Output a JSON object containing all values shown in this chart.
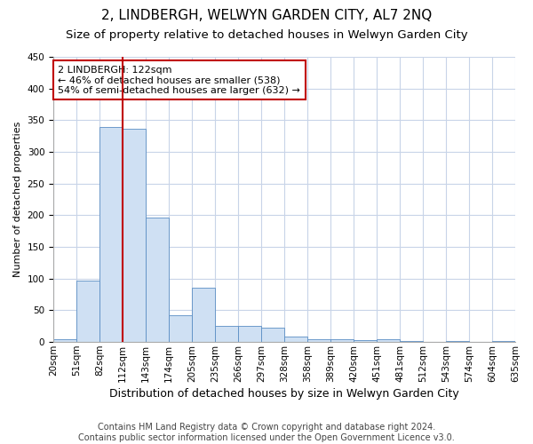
{
  "title": "2, LINDBERGH, WELWYN GARDEN CITY, AL7 2NQ",
  "subtitle": "Size of property relative to detached houses in Welwyn Garden City",
  "xlabel": "Distribution of detached houses by size in Welwyn Garden City",
  "ylabel": "Number of detached properties",
  "footer_line1": "Contains HM Land Registry data © Crown copyright and database right 2024.",
  "footer_line2": "Contains public sector information licensed under the Open Government Licence v3.0.",
  "annotation_line1": "2 LINDBERGH: 122sqm",
  "annotation_line2": "← 46% of detached houses are smaller (538)",
  "annotation_line3": "54% of semi-detached houses are larger (632) →",
  "bar_values": [
    4,
    97,
    340,
    336,
    197,
    42,
    85,
    26,
    25,
    22,
    9,
    5,
    4,
    3,
    5,
    1,
    0,
    1,
    0,
    2
  ],
  "bin_labels": [
    "20sqm",
    "51sqm",
    "82sqm",
    "112sqm",
    "143sqm",
    "174sqm",
    "205sqm",
    "235sqm",
    "266sqm",
    "297sqm",
    "328sqm",
    "358sqm",
    "389sqm",
    "420sqm",
    "451sqm",
    "481sqm",
    "512sqm",
    "543sqm",
    "574sqm",
    "604sqm",
    "635sqm"
  ],
  "bar_color": "#cfe0f3",
  "bar_edge_color": "#5b8ec4",
  "vline_color": "#c00000",
  "vline_x_bar_index": 3,
  "annotation_box_color": "#ffffff",
  "annotation_box_edge": "#c00000",
  "ylim": [
    0,
    450
  ],
  "yticks": [
    0,
    50,
    100,
    150,
    200,
    250,
    300,
    350,
    400,
    450
  ],
  "background_color": "#ffffff",
  "grid_color": "#c8d4e8",
  "title_fontsize": 11,
  "subtitle_fontsize": 9.5,
  "ylabel_fontsize": 8,
  "xlabel_fontsize": 9,
  "tick_fontsize": 7.5,
  "annotation_fontsize": 8,
  "footer_fontsize": 7
}
